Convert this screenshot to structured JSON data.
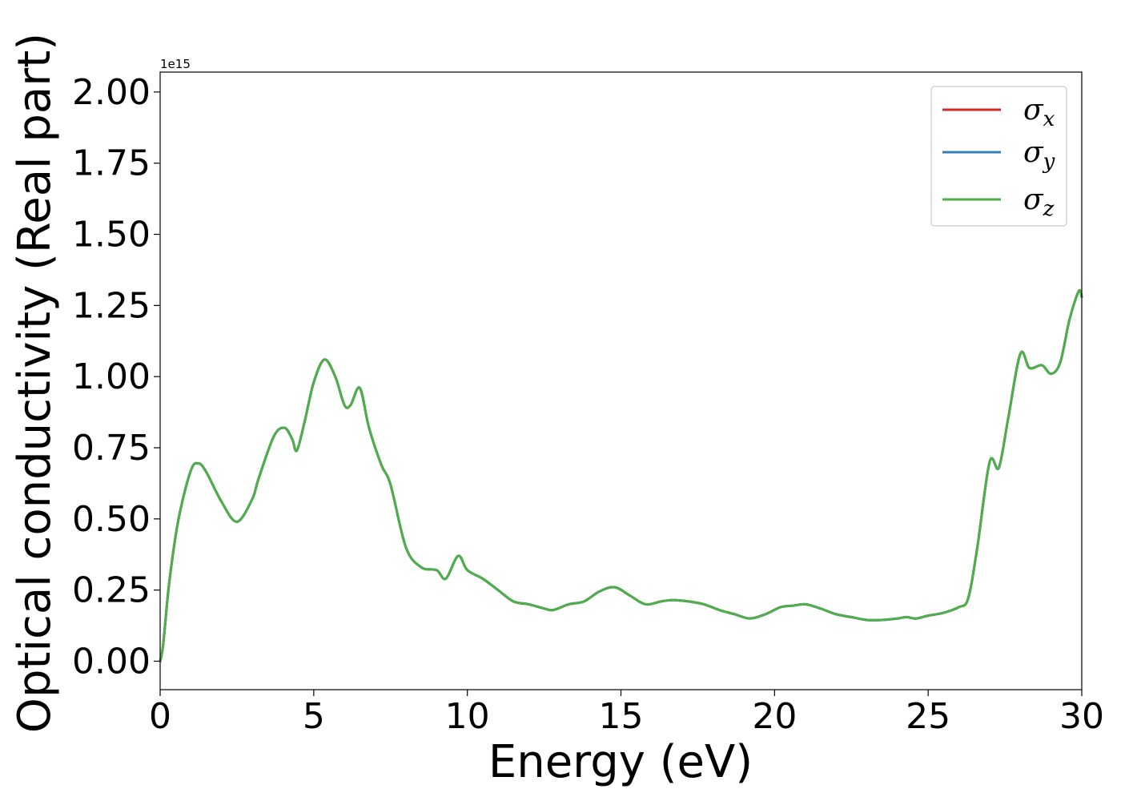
{
  "chart_data": {
    "type": "line",
    "title": "",
    "xlabel": "Energy (eV)",
    "ylabel": "Optical conductivity (Real part)",
    "y_offset_label": "1e15",
    "xlim": [
      0,
      30
    ],
    "ylim": [
      -0.1,
      2.07
    ],
    "xticks": [
      0,
      5,
      10,
      15,
      20,
      25,
      30
    ],
    "xtick_labels": [
      "0",
      "5",
      "10",
      "15",
      "20",
      "25",
      "30"
    ],
    "yticks": [
      0.0,
      0.25,
      0.5,
      0.75,
      1.0,
      1.25,
      1.5,
      1.75,
      2.0
    ],
    "ytick_labels": [
      "0.00",
      "0.25",
      "0.50",
      "0.75",
      "1.00",
      "1.25",
      "1.50",
      "1.75",
      "2.00"
    ],
    "grid": false,
    "legend_position": "top-right",
    "x": [
      0,
      0.1,
      0.3,
      0.6,
      1.0,
      1.25,
      1.5,
      2.0,
      2.5,
      3.0,
      3.2,
      3.7,
      4.05,
      4.3,
      4.45,
      4.7,
      5.0,
      5.35,
      5.7,
      6.0,
      6.2,
      6.5,
      6.8,
      7.2,
      7.5,
      8.0,
      8.5,
      9.0,
      9.3,
      9.7,
      10.0,
      10.5,
      11.0,
      11.5,
      12.0,
      12.5,
      12.8,
      13.3,
      13.8,
      14.3,
      14.8,
      15.3,
      15.8,
      16.3,
      16.7,
      17.2,
      17.7,
      18.2,
      18.7,
      19.2,
      19.7,
      20.2,
      20.6,
      21.0,
      21.5,
      22.0,
      22.5,
      23.0,
      23.5,
      24.0,
      24.3,
      24.6,
      25.0,
      25.5,
      26.0,
      26.3,
      26.6,
      27.0,
      27.3,
      27.6,
      28.0,
      28.3,
      28.7,
      29.0,
      29.3,
      29.6,
      29.9,
      30.0
    ],
    "series": [
      {
        "name": "σx",
        "color": "#d62728",
        "values": [
          0.0,
          0.06,
          0.28,
          0.5,
          0.67,
          0.695,
          0.665,
          0.56,
          0.49,
          0.57,
          0.64,
          0.79,
          0.82,
          0.78,
          0.74,
          0.84,
          0.98,
          1.06,
          1.0,
          0.9,
          0.9,
          0.96,
          0.82,
          0.69,
          0.62,
          0.4,
          0.33,
          0.32,
          0.29,
          0.37,
          0.32,
          0.29,
          0.25,
          0.21,
          0.2,
          0.185,
          0.18,
          0.2,
          0.21,
          0.245,
          0.26,
          0.23,
          0.2,
          0.21,
          0.215,
          0.21,
          0.2,
          0.18,
          0.165,
          0.15,
          0.165,
          0.19,
          0.195,
          0.2,
          0.185,
          0.165,
          0.155,
          0.145,
          0.145,
          0.15,
          0.155,
          0.15,
          0.16,
          0.17,
          0.19,
          0.22,
          0.4,
          0.7,
          0.68,
          0.85,
          1.08,
          1.03,
          1.04,
          1.01,
          1.05,
          1.2,
          1.3,
          1.28
        ]
      },
      {
        "name": "σy",
        "color": "#377eb8",
        "values": [
          0.0,
          0.06,
          0.28,
          0.5,
          0.67,
          0.695,
          0.665,
          0.56,
          0.49,
          0.57,
          0.64,
          0.79,
          0.82,
          0.78,
          0.74,
          0.84,
          0.98,
          1.06,
          1.0,
          0.9,
          0.9,
          0.96,
          0.82,
          0.69,
          0.62,
          0.4,
          0.33,
          0.32,
          0.29,
          0.37,
          0.32,
          0.29,
          0.25,
          0.21,
          0.2,
          0.185,
          0.18,
          0.2,
          0.21,
          0.245,
          0.26,
          0.23,
          0.2,
          0.21,
          0.215,
          0.21,
          0.2,
          0.18,
          0.165,
          0.15,
          0.165,
          0.19,
          0.195,
          0.2,
          0.185,
          0.165,
          0.155,
          0.145,
          0.145,
          0.15,
          0.155,
          0.15,
          0.16,
          0.17,
          0.19,
          0.22,
          0.4,
          0.7,
          0.68,
          0.85,
          1.08,
          1.03,
          1.04,
          1.01,
          1.05,
          1.2,
          1.3,
          1.28
        ]
      },
      {
        "name": "σz",
        "color": "#4daf4a",
        "values": [
          0.0,
          0.06,
          0.28,
          0.5,
          0.67,
          0.695,
          0.665,
          0.56,
          0.49,
          0.57,
          0.64,
          0.79,
          0.82,
          0.78,
          0.74,
          0.84,
          0.98,
          1.06,
          1.0,
          0.9,
          0.9,
          0.96,
          0.82,
          0.69,
          0.62,
          0.4,
          0.33,
          0.32,
          0.29,
          0.37,
          0.32,
          0.29,
          0.25,
          0.21,
          0.2,
          0.185,
          0.18,
          0.2,
          0.21,
          0.245,
          0.26,
          0.23,
          0.2,
          0.21,
          0.215,
          0.21,
          0.2,
          0.18,
          0.165,
          0.15,
          0.165,
          0.19,
          0.195,
          0.2,
          0.185,
          0.165,
          0.155,
          0.145,
          0.145,
          0.15,
          0.155,
          0.15,
          0.16,
          0.17,
          0.19,
          0.22,
          0.4,
          0.7,
          0.68,
          0.85,
          1.08,
          1.03,
          1.04,
          1.01,
          1.05,
          1.2,
          1.3,
          1.28
        ]
      }
    ],
    "legend": [
      {
        "symbol": "σ",
        "sub": "x"
      },
      {
        "symbol": "σ",
        "sub": "y"
      },
      {
        "symbol": "σ",
        "sub": "z"
      }
    ]
  }
}
